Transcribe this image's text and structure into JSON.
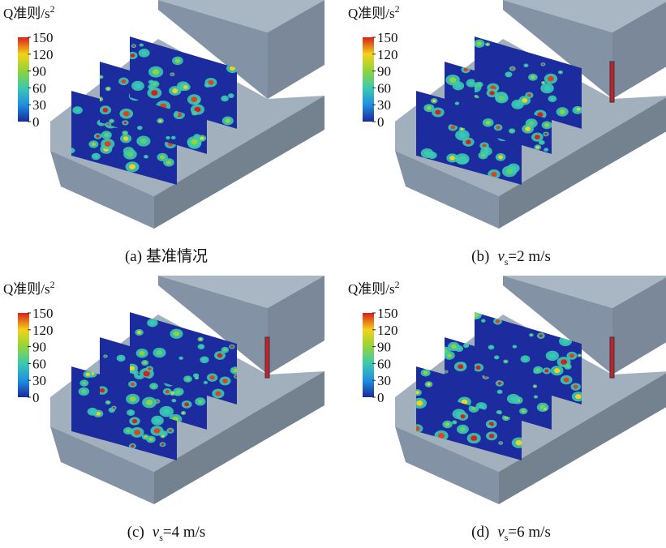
{
  "colorbar": {
    "title": "Q准则/s",
    "title_sup": "2",
    "ticks": [
      0,
      30,
      60,
      90,
      120,
      150
    ]
  },
  "panels": [
    {
      "caption": {
        "prefix": "(a)",
        "text": "基准情况"
      }
    },
    {
      "caption": {
        "prefix": "(b)",
        "var": "v",
        "sub": "s",
        "text": "=2 m/s"
      }
    },
    {
      "caption": {
        "prefix": "(c)",
        "var": "v",
        "sub": "s",
        "text": "=4 m/s"
      }
    },
    {
      "caption": {
        "prefix": "(d)",
        "var": "v",
        "sub": "s",
        "text": "=6 m/s"
      }
    }
  ]
}
